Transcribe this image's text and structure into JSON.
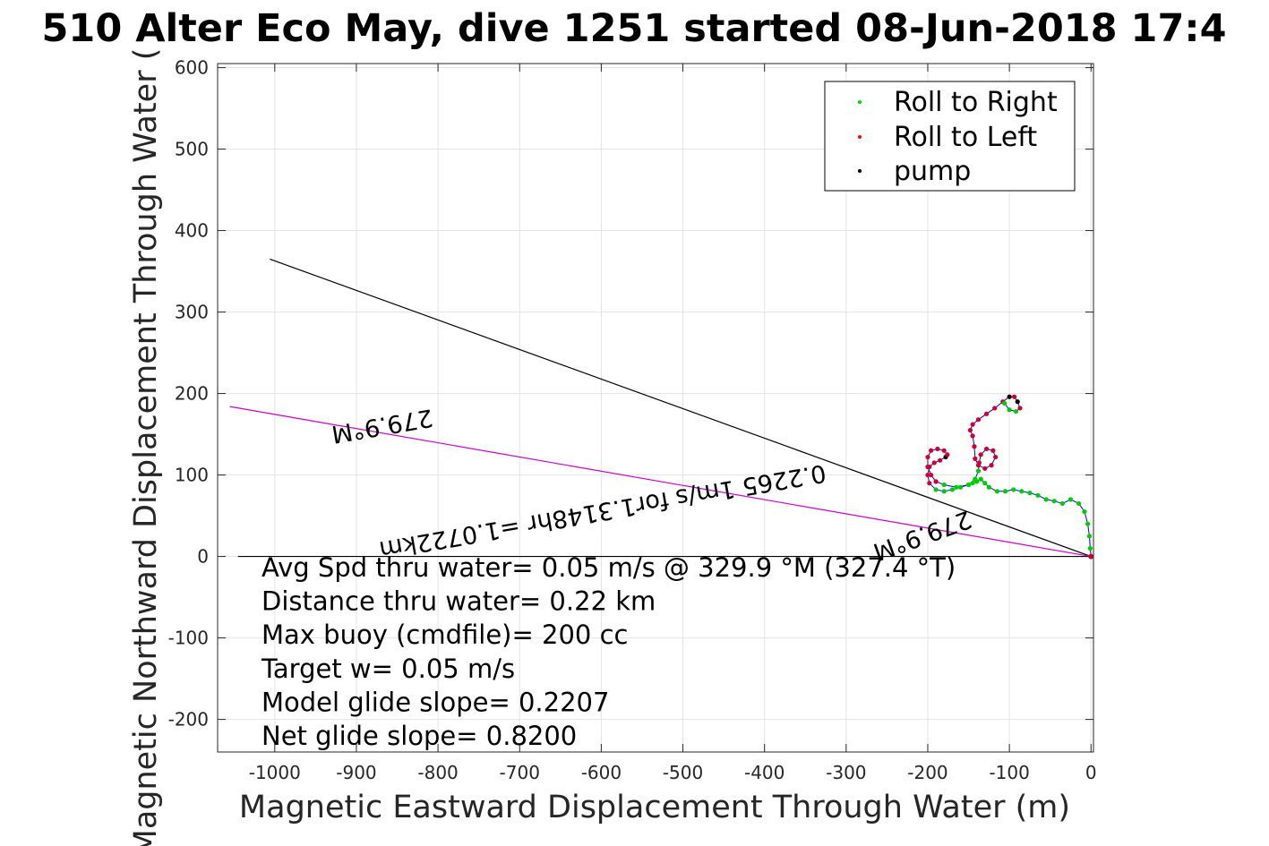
{
  "chart_data": {
    "type": "line",
    "title": "510 Alter Eco May, dive 1251 started 08-Jun-2018 17:4",
    "xlabel": "Magnetic Eastward Displacement Through Water (m)",
    "ylabel": "Magnetic Northward Displacement Through Water (",
    "xlim": [
      -1070,
      3
    ],
    "ylim": [
      -240,
      605
    ],
    "grid": true,
    "xticks": [
      -1000,
      -900,
      -800,
      -700,
      -600,
      -500,
      -400,
      -300,
      -200,
      -100,
      0
    ],
    "yticks": [
      600,
      500,
      400,
      300,
      200,
      100,
      0,
      -100,
      -200
    ],
    "xtick_labels": [
      "-1000",
      "-900",
      "-800",
      "-700",
      "-600",
      "-500",
      "-400",
      "-300",
      "-200",
      "-100",
      "0"
    ],
    "ytick_labels": [
      "600",
      "500",
      "400",
      "300",
      "200",
      "100",
      "0",
      "-100",
      "-200"
    ],
    "legend": {
      "placement": "top-right",
      "entries": [
        {
          "label": "Roll to Right",
          "color": "#00dd00"
        },
        {
          "label": "Roll to Left",
          "color": "#ff0000"
        },
        {
          "label": "pump",
          "color": "#000000"
        }
      ]
    },
    "lines": [
      {
        "label": "heading line (black)",
        "color": "#000000",
        "points": [
          [
            0,
            0
          ],
          [
            -1006,
            365
          ]
        ]
      },
      {
        "label": "heading line (magenta)",
        "color": "#cc00cc",
        "points": [
          [
            0,
            0
          ],
          [
            -1055,
            184
          ]
        ]
      },
      {
        "label": "zero line",
        "color": "#000000",
        "points": [
          [
            0,
            0
          ],
          [
            -1045,
            0
          ]
        ]
      }
    ],
    "track": [
      [
        0,
        0
      ],
      [
        -1,
        10
      ],
      [
        -2,
        25
      ],
      [
        -4,
        40
      ],
      [
        -8,
        55
      ],
      [
        -15,
        65
      ],
      [
        -25,
        70
      ],
      [
        -35,
        65
      ],
      [
        -45,
        68
      ],
      [
        -55,
        70
      ],
      [
        -65,
        75
      ],
      [
        -75,
        78
      ],
      [
        -85,
        80
      ],
      [
        -95,
        82
      ],
      [
        -105,
        80
      ],
      [
        -115,
        80
      ],
      [
        -125,
        85
      ],
      [
        -130,
        90
      ],
      [
        -135,
        95
      ],
      [
        -140,
        92
      ],
      [
        -145,
        90
      ],
      [
        -150,
        88
      ],
      [
        -160,
        85
      ],
      [
        -170,
        82
      ],
      [
        -180,
        80
      ],
      [
        -190,
        82
      ],
      [
        -198,
        90
      ],
      [
        -200,
        100
      ],
      [
        -198,
        110
      ],
      [
        -192,
        115
      ],
      [
        -185,
        118
      ],
      [
        -178,
        122
      ],
      [
        -176,
        125
      ],
      [
        -180,
        130
      ],
      [
        -188,
        132
      ],
      [
        -196,
        130
      ],
      [
        -200,
        122
      ],
      [
        -200,
        110
      ],
      [
        -196,
        100
      ],
      [
        -190,
        92
      ],
      [
        -180,
        88
      ],
      [
        -165,
        85
      ],
      [
        -150,
        88
      ],
      [
        -142,
        95
      ],
      [
        -138,
        105
      ],
      [
        -137,
        115
      ],
      [
        -135,
        125
      ],
      [
        -128,
        132
      ],
      [
        -120,
        130
      ],
      [
        -117,
        122
      ],
      [
        -122,
        112
      ],
      [
        -130,
        108
      ],
      [
        -138,
        112
      ],
      [
        -142,
        120
      ],
      [
        -143,
        135
      ],
      [
        -145,
        148
      ],
      [
        -148,
        155
      ],
      [
        -145,
        162
      ],
      [
        -138,
        168
      ],
      [
        -128,
        175
      ],
      [
        -118,
        182
      ],
      [
        -108,
        190
      ],
      [
        -100,
        196
      ],
      [
        -94,
        196
      ],
      [
        -90,
        190
      ],
      [
        -87,
        182
      ],
      [
        -92,
        178
      ],
      [
        -100,
        180
      ],
      [
        -106,
        188
      ]
    ],
    "track_colors": {
      "right": "#00cc00",
      "left": "#cc0033",
      "pump": "#000000",
      "path": "#0000ff"
    },
    "rotated_labels": [
      {
        "text": "279.9°M",
        "x": -870,
        "y": 170,
        "angle": 170.1
      },
      {
        "text": "0.2265 1m/s for1.3148hr =1.0722km",
        "x": -600,
        "y": 65,
        "angle": 170.1
      },
      {
        "text": "279.9°M",
        "x": -210,
        "y": 35,
        "angle": 160.0
      }
    ]
  },
  "annotations": [
    "Avg Spd thru water=  0.05 m/s @ 329.9 °M (327.4 °T)",
    "Distance thru water=  0.22 km",
    "Max buoy (cmdfile)= 200 cc",
    "Target w= 0.05 m/s",
    "Model glide slope= 0.2207",
    "Net glide slope= 0.8200"
  ]
}
